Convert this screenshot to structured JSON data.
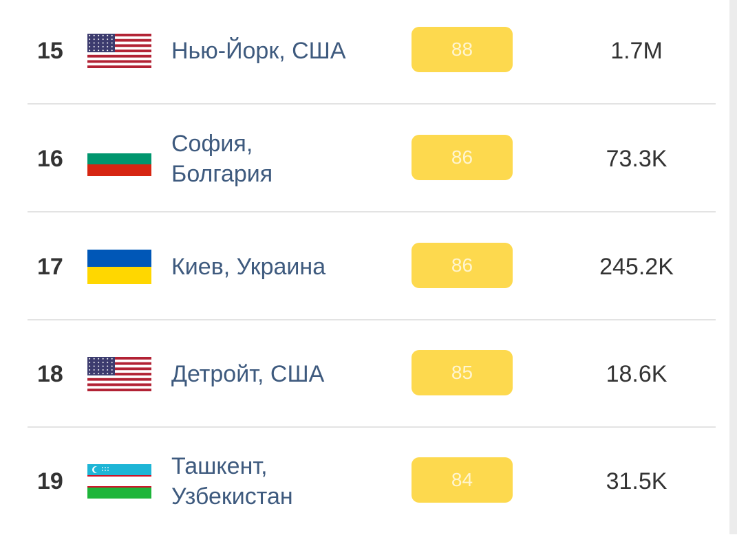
{
  "rows": [
    {
      "rank": 15,
      "city": "Нью-Йорк, США",
      "score": 88,
      "population": "1.7M"
    },
    {
      "rank": 16,
      "city": "София, Болгария",
      "score": 86,
      "population": "73.3K"
    },
    {
      "rank": 17,
      "city": "Киев, Украина",
      "score": 86,
      "population": "245.2K"
    },
    {
      "rank": 18,
      "city": "Детройт, США",
      "score": 85,
      "population": "18.6K"
    },
    {
      "rank": 19,
      "city": "Ташкент, Узбекистан",
      "score": 84,
      "population": "31.5K"
    }
  ]
}
